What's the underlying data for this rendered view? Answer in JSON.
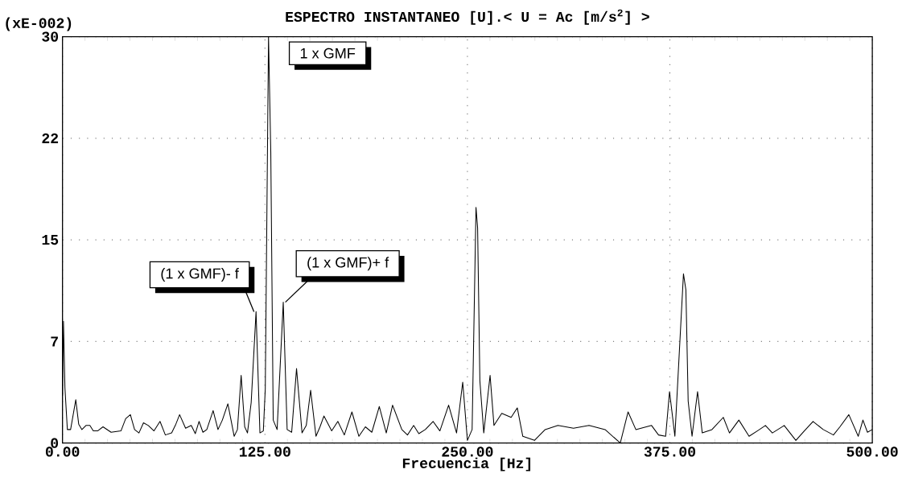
{
  "chart_data": {
    "type": "line",
    "title": "ESPECTRO INSTANTANEO [U].< U = Ac [m/s$^{2}$] >",
    "xlabel": "Frecuencia [Hz]",
    "ylabel": "(xE-002)",
    "x": [
      0,
      0.6,
      1.5,
      3.0,
      5.0,
      8.2,
      10.0,
      12.0,
      14.5,
      16.9,
      19.0,
      21.7,
      25.0,
      30.0,
      36.1,
      39.0,
      41.9,
      44.5,
      47.2,
      50.0,
      53.0,
      56.5,
      60.2,
      63.5,
      67.4,
      70.0,
      72.3,
      76.0,
      79.5,
      82.0,
      84.3,
      86.7,
      89.1,
      93.0,
      96.0,
      98.7,
      102.1,
      106.0,
      108.0,
      110.3,
      112.5,
      114.2,
      116.5,
      119.5,
      121.9,
      124.0,
      125.2,
      127.2,
      128.6,
      130.1,
      132.5,
      136.3,
      138.7,
      141.5,
      144.5,
      147.9,
      150.5,
      153.2,
      156.5,
      159.0,
      161.4,
      166.2,
      170.0,
      174.0,
      178.7,
      183.0,
      187.0,
      191.0,
      195.6,
      199.9,
      203.8,
      209.5,
      213.0,
      216.8,
      220.0,
      224.0,
      228.8,
      233.0,
      238.4,
      243.3,
      247.1,
      250.0,
      252.9,
      255.3,
      256.3,
      257.7,
      260.1,
      264.0,
      266.4,
      271.2,
      277.0,
      280.8,
      284.2,
      291.4,
      298.0,
      305.9,
      315.5,
      325.1,
      335.0,
      344.4,
      349.2,
      354.0,
      363.7,
      368.0,
      372.4,
      374.8,
      378.1,
      383.4,
      384.9,
      386.3,
      388.7,
      392.1,
      395.0,
      401.0,
      408.0,
      411.8,
      417.6,
      423.9,
      429.0,
      434.0,
      438.3,
      445.6,
      452.8,
      458.0,
      463.4,
      469.7,
      476.0,
      480.0,
      485.5,
      491.3,
      494.2,
      497.0,
      500.0
    ],
    "values": [
      3.5,
      9.0,
      4.1,
      1.0,
      1.0,
      3.2,
      1.4,
      1.0,
      1.3,
      1.3,
      0.9,
      0.9,
      1.2,
      0.8,
      0.9,
      1.8,
      2.1,
      1.0,
      0.75,
      1.5,
      1.3,
      0.9,
      1.6,
      0.6,
      0.75,
      1.4,
      2.1,
      1.1,
      1.3,
      0.7,
      1.6,
      0.8,
      1.0,
      2.4,
      1.0,
      1.7,
      2.9,
      0.5,
      1.0,
      5.0,
      1.2,
      0.75,
      3.0,
      9.7,
      0.75,
      0.9,
      4.0,
      30.0,
      21.5,
      1.7,
      1.0,
      10.4,
      1.0,
      0.8,
      5.5,
      0.75,
      1.3,
      3.9,
      0.5,
      1.2,
      2.0,
      0.9,
      1.6,
      0.6,
      2.3,
      0.5,
      1.2,
      0.8,
      2.7,
      0.75,
      2.8,
      1.0,
      0.6,
      1.3,
      0.7,
      1.0,
      1.6,
      0.9,
      2.8,
      0.75,
      4.5,
      0.2,
      1.0,
      17.4,
      15.9,
      4.6,
      0.75,
      5.0,
      1.3,
      2.2,
      1.9,
      2.6,
      0.5,
      0.2,
      1.0,
      1.3,
      1.1,
      1.3,
      1.0,
      0.0,
      2.3,
      1.0,
      1.3,
      0.6,
      0.5,
      3.8,
      0.5,
      12.5,
      11.3,
      3.1,
      0.5,
      3.8,
      0.75,
      1.0,
      1.9,
      0.75,
      1.7,
      0.5,
      0.9,
      1.3,
      0.75,
      1.3,
      0.2,
      0.9,
      1.6,
      1.0,
      0.6,
      1.2,
      2.1,
      0.5,
      1.7,
      0.8,
      1.0
    ],
    "color": "#000000",
    "xlim": [
      0,
      500
    ],
    "ylim": [
      0,
      30
    ],
    "xticks": [
      {
        "value": 0,
        "label": "0.00"
      },
      {
        "value": 125,
        "label": "125.00"
      },
      {
        "value": 250,
        "label": "250.00"
      },
      {
        "value": 375,
        "label": "375.00"
      },
      {
        "value": 500,
        "label": "500.00"
      }
    ],
    "yticks": [
      0,
      {
        "value": 7.5,
        "label": "7"
      },
      15,
      {
        "value": 22.5,
        "label": "22"
      },
      30
    ],
    "grid": true,
    "annotations": [
      {
        "text": "1 x GMF",
        "x": 127.2,
        "y": 30.0
      },
      {
        "text": "(1 x GMF)- f",
        "x": 119.5,
        "y": 9.7
      },
      {
        "text": "(1 x GMF)+ f",
        "x": 136.3,
        "y": 10.4
      }
    ]
  }
}
